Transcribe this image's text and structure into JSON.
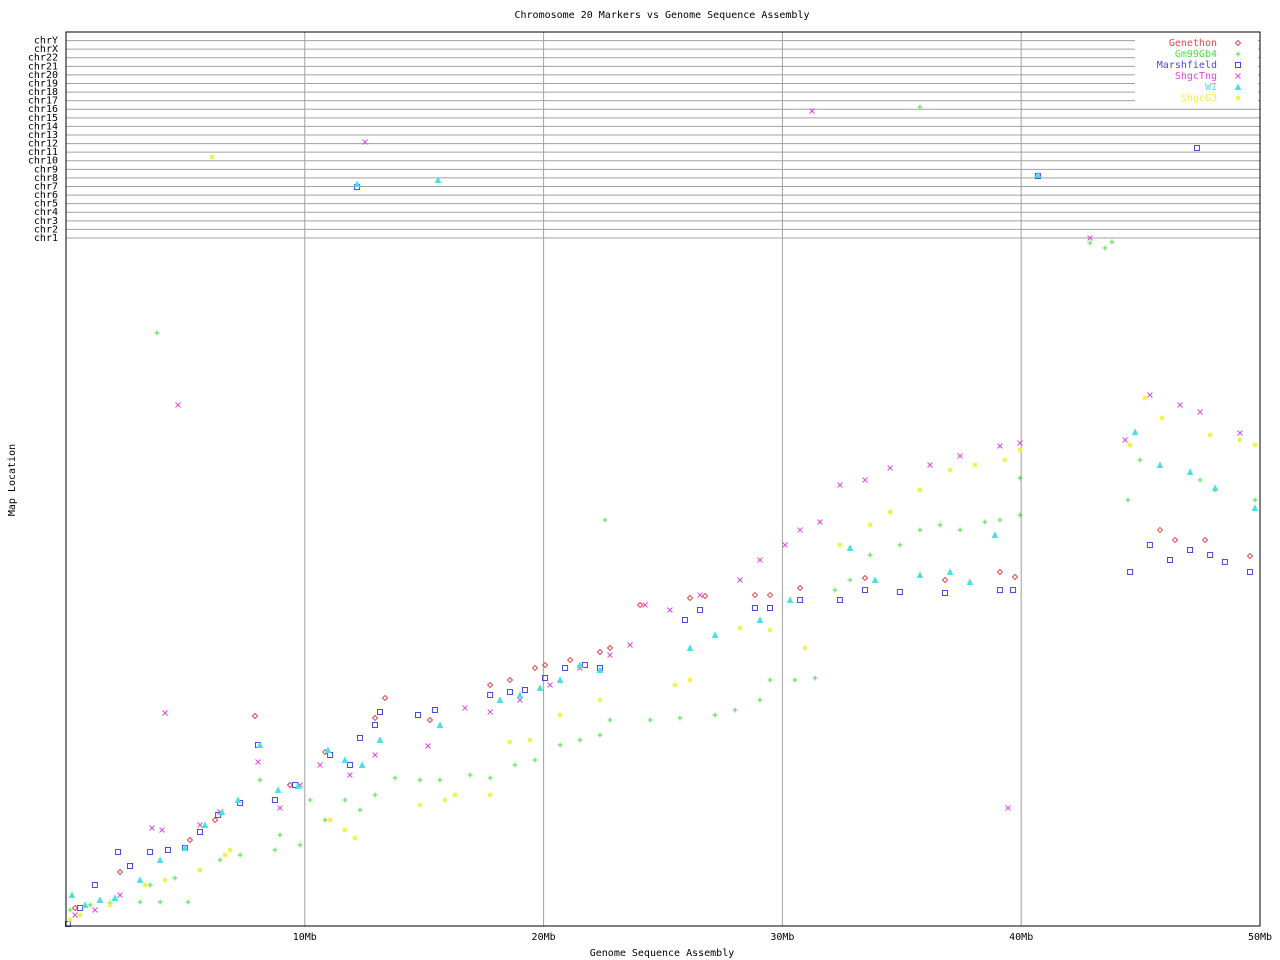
{
  "chart_data": {
    "type": "scatter",
    "title": "Chromosome 20 Markers vs Genome Sequence Assembly",
    "x_label": "Genome Sequence Assembly",
    "y_label": "Map Location",
    "xlim": [
      0,
      50
    ],
    "ylim": [
      0,
      100
    ],
    "xticks": [
      {
        "value": 10,
        "label": "10Mb"
      },
      {
        "value": 20,
        "label": "20Mb"
      },
      {
        "value": 30,
        "label": "30Mb"
      },
      {
        "value": 40,
        "label": "40Mb"
      },
      {
        "value": 50,
        "label": "50Mb"
      }
    ],
    "yticks": [
      {
        "value": 76.96,
        "label": "chr1"
      },
      {
        "value": 77.92,
        "label": "chr2"
      },
      {
        "value": 78.88,
        "label": "chr3"
      },
      {
        "value": 79.84,
        "label": "chr4"
      },
      {
        "value": 80.8,
        "label": "chr5"
      },
      {
        "value": 81.76,
        "label": "chr6"
      },
      {
        "value": 82.72,
        "label": "chr7"
      },
      {
        "value": 83.68,
        "label": "chr8"
      },
      {
        "value": 84.64,
        "label": "chr9"
      },
      {
        "value": 85.6,
        "label": "chr10"
      },
      {
        "value": 86.56,
        "label": "chr11"
      },
      {
        "value": 87.52,
        "label": "chr12"
      },
      {
        "value": 88.48,
        "label": "chr13"
      },
      {
        "value": 89.44,
        "label": "chr14"
      },
      {
        "value": 90.4,
        "label": "chr15"
      },
      {
        "value": 91.36,
        "label": "chr16"
      },
      {
        "value": 92.32,
        "label": "chr17"
      },
      {
        "value": 93.28,
        "label": "chr18"
      },
      {
        "value": 94.24,
        "label": "chr19"
      },
      {
        "value": 95.2,
        "label": "chr20"
      },
      {
        "value": 96.16,
        "label": "chr21"
      },
      {
        "value": 97.12,
        "label": "chr22"
      },
      {
        "value": 98.08,
        "label": "chrX"
      },
      {
        "value": 99.04,
        "label": "chrY"
      }
    ],
    "grid": true,
    "legend": "upper right",
    "series": [
      {
        "name": "Genethon",
        "color": "#e04848",
        "marker": "diamond",
        "x": [
          0.38,
          2.26,
          5.19,
          6.24,
          7.91,
          9.38,
          10.85,
          13.36,
          12.94,
          15.24,
          17.76,
          18.59,
          19.64,
          20.06,
          21.11,
          22.36,
          22.78,
          24.04,
          26.13,
          26.76,
          28.85,
          29.48,
          30.74,
          33.46,
          36.81,
          39.11,
          39.74,
          45.81,
          46.44,
          47.7,
          49.58
        ],
        "values": [
          2.01,
          6.04,
          9.62,
          11.86,
          23.49,
          15.77,
          19.46,
          25.5,
          23.27,
          23.04,
          26.96,
          27.52,
          28.86,
          29.19,
          29.75,
          30.65,
          31.1,
          35.91,
          36.69,
          36.91,
          37.02,
          37.02,
          37.81,
          38.93,
          38.7,
          39.6,
          39.04,
          44.3,
          43.18,
          43.18,
          41.39
        ]
      },
      {
        "name": "Gm99Gb4",
        "color": "#48e048",
        "marker": "plus",
        "x": [
          0.17,
          1.01,
          1.84,
          3.1,
          3.94,
          5.11,
          3.52,
          4.56,
          5.61,
          6.45,
          7.29,
          8.12,
          8.75,
          8.96,
          9.8,
          10.22,
          10.85,
          11.68,
          12.31,
          12.94,
          13.78,
          14.82,
          15.66,
          16.92,
          17.76,
          18.8,
          19.64,
          20.69,
          21.52,
          22.36,
          22.78,
          22.57,
          24.46,
          25.71,
          27.18,
          28.02,
          29.06,
          29.48,
          30.53,
          31.37,
          32.2,
          32.83,
          33.67,
          34.92,
          35.76,
          36.6,
          37.44,
          38.48,
          39.11,
          39.95,
          39.95,
          42.88,
          43.51,
          43.8,
          44.47,
          44.97,
          47.49,
          48.12,
          49.79,
          3.81,
          35.76
        ],
        "values": [
          1.79,
          2.35,
          2.57,
          2.68,
          2.68,
          2.68,
          4.59,
          5.37,
          6.26,
          7.38,
          7.94,
          16.33,
          8.5,
          10.18,
          9.06,
          14.09,
          11.86,
          14.09,
          12.98,
          14.65,
          16.55,
          16.33,
          16.33,
          16.89,
          16.55,
          18.01,
          18.57,
          20.25,
          20.81,
          21.36,
          23.04,
          45.41,
          23.04,
          23.27,
          23.6,
          24.16,
          25.28,
          27.52,
          27.52,
          27.74,
          37.58,
          38.7,
          41.5,
          42.62,
          44.3,
          44.85,
          44.3,
          45.19,
          45.41,
          45.97,
          50.11,
          76.4,
          75.84,
          76.51,
          47.65,
          52.13,
          49.89,
          48.77,
          47.65,
          66.33,
          91.61
        ]
      },
      {
        "name": "Marshfield",
        "color": "#4848e0",
        "marker": "square",
        "x": [
          0.08,
          0.59,
          1.21,
          2.18,
          2.68,
          3.52,
          4.27,
          4.98,
          5.61,
          6.37,
          7.29,
          8.04,
          8.75,
          9.59,
          11.06,
          11.89,
          12.31,
          12.94,
          13.15,
          14.74,
          15.45,
          17.76,
          18.59,
          19.22,
          20.06,
          20.9,
          21.73,
          22.36,
          25.92,
          26.55,
          28.85,
          29.48,
          30.74,
          32.41,
          33.46,
          34.92,
          36.81,
          39.11,
          39.66,
          44.56,
          45.39,
          46.23,
          47.07,
          47.91,
          48.53,
          49.58,
          12.19,
          40.7,
          47.36
        ],
        "values": [
          0.22,
          2.01,
          4.59,
          8.28,
          6.71,
          8.28,
          8.5,
          8.72,
          10.51,
          12.42,
          13.76,
          20.25,
          14.09,
          15.77,
          19.13,
          18.01,
          21.03,
          22.48,
          23.94,
          23.6,
          24.16,
          25.84,
          26.17,
          26.4,
          27.74,
          28.86,
          29.19,
          28.86,
          34.23,
          35.35,
          35.57,
          35.57,
          36.47,
          36.47,
          37.58,
          37.36,
          37.25,
          37.58,
          37.58,
          39.6,
          42.62,
          40.94,
          42.06,
          41.5,
          40.72,
          39.6,
          82.66,
          83.89,
          87.02
        ]
      },
      {
        "name": "ShgcTng",
        "color": "#e048e0",
        "marker": "cross",
        "x": [
          0.38,
          1.21,
          2.26,
          3.6,
          4.02,
          4.69,
          4.15,
          5.61,
          6.45,
          8.04,
          8.96,
          9.8,
          10.64,
          11.89,
          12.52,
          12.94,
          15.16,
          16.71,
          17.76,
          19.01,
          20.27,
          21.52,
          22.78,
          23.62,
          24.25,
          25.29,
          26.55,
          28.22,
          29.06,
          30.11,
          30.74,
          31.57,
          32.41,
          33.46,
          34.51,
          36.18,
          37.44,
          39.11,
          39.95,
          39.45,
          42.88,
          31.24,
          44.35,
          45.39,
          46.65,
          47.49,
          49.16
        ],
        "values": [
          1.23,
          1.79,
          3.47,
          10.96,
          10.74,
          58.28,
          23.83,
          11.3,
          12.75,
          18.34,
          13.2,
          15.77,
          18.01,
          16.89,
          87.7,
          19.13,
          20.13,
          24.38,
          23.94,
          25.28,
          26.96,
          28.86,
          30.31,
          31.43,
          35.91,
          35.35,
          37.02,
          38.7,
          40.94,
          42.62,
          44.3,
          45.19,
          49.33,
          49.89,
          51.23,
          51.57,
          52.57,
          53.69,
          54.03,
          13.2,
          76.96,
          91.16,
          54.36,
          59.4,
          58.28,
          57.49,
          55.15
        ]
      },
      {
        "name": "WI",
        "color": "#48e0e0",
        "marker": "triangle",
        "x": [
          0.25,
          0.8,
          1.42,
          2.05,
          3.1,
          3.94,
          4.98,
          5.82,
          6.53,
          7.2,
          8.12,
          8.88,
          9.72,
          10.97,
          11.68,
          12.4,
          13.15,
          15.66,
          18.17,
          19.01,
          19.85,
          20.69,
          21.52,
          22.36,
          26.13,
          27.18,
          29.06,
          30.32,
          32.83,
          33.88,
          35.76,
          37.02,
          37.85,
          38.9,
          44.77,
          45.81,
          47.07,
          48.12,
          49.79,
          12.19,
          15.58,
          40.7
        ],
        "values": [
          3.47,
          2.35,
          2.91,
          3.13,
          5.15,
          7.38,
          8.72,
          11.3,
          12.75,
          14.09,
          20.25,
          15.21,
          15.66,
          19.69,
          18.57,
          18.01,
          20.81,
          22.48,
          25.28,
          25.84,
          26.62,
          27.52,
          29.19,
          28.64,
          31.1,
          32.55,
          34.23,
          36.47,
          42.28,
          38.7,
          39.26,
          39.6,
          38.48,
          43.74,
          55.26,
          51.57,
          50.78,
          48.99,
          46.76,
          83.0,
          83.45,
          84.0
        ]
      },
      {
        "name": "ShgcG3",
        "color": "#f0f040",
        "marker": "star",
        "x": [
          0.17,
          0.59,
          1.84,
          3.31,
          4.15,
          5.61,
          6.66,
          6.87,
          11.06,
          11.68,
          12.1,
          14.82,
          15.87,
          16.29,
          17.76,
          18.59,
          19.43,
          20.69,
          22.36,
          25.5,
          26.13,
          28.22,
          29.48,
          30.95,
          32.41,
          33.67,
          34.51,
          35.76,
          37.02,
          38.06,
          39.32,
          39.95,
          44.56,
          45.18,
          45.9,
          47.91,
          49.16,
          49.79,
          6.11
        ],
        "values": [
          0.67,
          1.23,
          2.35,
          4.59,
          5.15,
          6.26,
          7.94,
          8.5,
          11.86,
          10.74,
          9.84,
          13.53,
          14.09,
          14.65,
          14.65,
          20.58,
          20.81,
          23.6,
          25.28,
          26.96,
          27.52,
          33.33,
          33.11,
          31.1,
          42.62,
          44.85,
          46.31,
          48.77,
          51.01,
          51.57,
          52.13,
          53.24,
          53.8,
          59.06,
          56.82,
          54.92,
          54.36,
          53.8,
          86.02
        ]
      }
    ]
  }
}
